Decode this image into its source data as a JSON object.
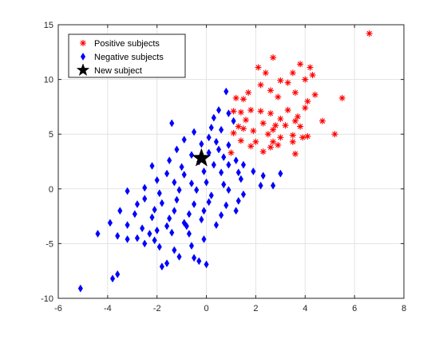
{
  "chart_data": {
    "type": "scatter",
    "title": "",
    "xlabel": "",
    "ylabel": "",
    "xlim": [
      -6,
      8
    ],
    "ylim": [
      -10,
      15
    ],
    "xticks": [
      -6,
      -4,
      -2,
      0,
      2,
      4,
      6,
      8
    ],
    "yticks": [
      -10,
      -5,
      0,
      5,
      10,
      15
    ],
    "grid": true,
    "legend_position": "top-left",
    "series": [
      {
        "name": "Positive subjects",
        "marker": "asterisk",
        "color": "#ff0000",
        "points": [
          [
            6.6,
            14.2
          ],
          [
            2.7,
            12.0
          ],
          [
            3.8,
            11.4
          ],
          [
            2.1,
            11.1
          ],
          [
            3.5,
            10.6
          ],
          [
            4.2,
            11.1
          ],
          [
            4.3,
            10.4
          ],
          [
            4.0,
            10.0
          ],
          [
            2.4,
            10.6
          ],
          [
            2.2,
            9.5
          ],
          [
            3.0,
            9.9
          ],
          [
            3.3,
            9.7
          ],
          [
            1.7,
            8.8
          ],
          [
            2.6,
            9.0
          ],
          [
            2.9,
            8.4
          ],
          [
            3.6,
            8.8
          ],
          [
            1.2,
            8.3
          ],
          [
            1.5,
            8.2
          ],
          [
            4.4,
            8.6
          ],
          [
            4.1,
            8.0
          ],
          [
            5.5,
            8.3
          ],
          [
            2.2,
            7.1
          ],
          [
            3.3,
            7.2
          ],
          [
            1.1,
            7.1
          ],
          [
            1.4,
            7.0
          ],
          [
            1.8,
            7.2
          ],
          [
            2.6,
            6.9
          ],
          [
            3.7,
            6.6
          ],
          [
            4.0,
            7.4
          ],
          [
            3.0,
            6.4
          ],
          [
            3.6,
            6.2
          ],
          [
            2.8,
            5.8
          ],
          [
            1.6,
            6.3
          ],
          [
            2.3,
            6.0
          ],
          [
            4.7,
            6.2
          ],
          [
            1.3,
            5.7
          ],
          [
            1.9,
            5.3
          ],
          [
            2.7,
            5.4
          ],
          [
            3.2,
            5.8
          ],
          [
            3.8,
            5.7
          ],
          [
            1.1,
            5.1
          ],
          [
            1.5,
            5.5
          ],
          [
            2.5,
            5.0
          ],
          [
            3.5,
            4.9
          ],
          [
            3.0,
            4.7
          ],
          [
            3.9,
            4.7
          ],
          [
            4.1,
            4.8
          ],
          [
            5.2,
            5.0
          ],
          [
            1.4,
            4.4
          ],
          [
            2.0,
            4.3
          ],
          [
            2.6,
            3.8
          ],
          [
            2.9,
            4.0
          ],
          [
            3.5,
            4.3
          ],
          [
            1.8,
            3.9
          ],
          [
            1.0,
            3.3
          ],
          [
            2.3,
            3.4
          ],
          [
            2.7,
            4.3
          ],
          [
            3.6,
            3.2
          ]
        ]
      },
      {
        "name": "Negative subjects",
        "marker": "diamond",
        "color": "#0000ff",
        "points": [
          [
            0.8,
            8.9
          ],
          [
            0.5,
            7.2
          ],
          [
            0.3,
            6.5
          ],
          [
            0.9,
            6.9
          ],
          [
            1.1,
            6.2
          ],
          [
            0.2,
            5.6
          ],
          [
            0.6,
            5.4
          ],
          [
            -1.4,
            6.0
          ],
          [
            -0.5,
            5.2
          ],
          [
            0.1,
            4.7
          ],
          [
            0.4,
            4.3
          ],
          [
            0.9,
            4.0
          ],
          [
            -0.9,
            4.5
          ],
          [
            -0.2,
            4.1
          ],
          [
            0.5,
            3.6
          ],
          [
            -1.2,
            3.6
          ],
          [
            -0.6,
            3.1
          ],
          [
            0.1,
            3.3
          ],
          [
            0.7,
            2.9
          ],
          [
            1.2,
            2.6
          ],
          [
            -1.5,
            2.6
          ],
          [
            -1.0,
            2.0
          ],
          [
            -0.3,
            2.5
          ],
          [
            0.3,
            2.2
          ],
          [
            0.9,
            2.2
          ],
          [
            1.5,
            2.2
          ],
          [
            -2.2,
            2.1
          ],
          [
            -1.6,
            1.4
          ],
          [
            -0.9,
            1.3
          ],
          [
            -0.1,
            1.6
          ],
          [
            0.6,
            1.5
          ],
          [
            1.3,
            1.5
          ],
          [
            1.9,
            1.6
          ],
          [
            2.3,
            1.2
          ],
          [
            3.0,
            1.4
          ],
          [
            -2.0,
            0.8
          ],
          [
            -1.3,
            0.6
          ],
          [
            -0.6,
            0.5
          ],
          [
            0.0,
            0.6
          ],
          [
            0.7,
            0.4
          ],
          [
            1.4,
            0.9
          ],
          [
            2.2,
            0.3
          ],
          [
            -3.2,
            -0.2
          ],
          [
            -2.5,
            0.1
          ],
          [
            -1.9,
            -0.4
          ],
          [
            -1.1,
            -0.1
          ],
          [
            -0.4,
            -0.1
          ],
          [
            0.2,
            -0.6
          ],
          [
            0.9,
            -0.1
          ],
          [
            1.5,
            -0.5
          ],
          [
            2.7,
            0.3
          ],
          [
            -2.5,
            -0.9
          ],
          [
            -1.8,
            -1.3
          ],
          [
            -1.2,
            -1.0
          ],
          [
            -0.5,
            -1.4
          ],
          [
            0.1,
            -1.2
          ],
          [
            0.8,
            -1.5
          ],
          [
            1.3,
            -1.1
          ],
          [
            -2.8,
            -1.4
          ],
          [
            -2.1,
            -1.9
          ],
          [
            -1.3,
            -2.0
          ],
          [
            -0.7,
            -2.3
          ],
          [
            -0.1,
            -2.0
          ],
          [
            0.6,
            -2.4
          ],
          [
            1.2,
            -2.0
          ],
          [
            -3.5,
            -2.0
          ],
          [
            -2.9,
            -2.3
          ],
          [
            -2.2,
            -2.6
          ],
          [
            -1.5,
            -2.7
          ],
          [
            -0.9,
            -3.1
          ],
          [
            -0.2,
            -2.8
          ],
          [
            0.4,
            -3.3
          ],
          [
            -3.9,
            -3.1
          ],
          [
            -3.2,
            -3.3
          ],
          [
            -2.6,
            -3.6
          ],
          [
            -2.0,
            -3.8
          ],
          [
            -1.4,
            -4.0
          ],
          [
            -0.7,
            -4.1
          ],
          [
            -0.1,
            -4.6
          ],
          [
            -4.4,
            -4.1
          ],
          [
            -3.6,
            -4.3
          ],
          [
            -2.8,
            -4.5
          ],
          [
            -2.1,
            -4.7
          ],
          [
            -1.6,
            -3.4
          ],
          [
            -3.2,
            -4.6
          ],
          [
            -2.5,
            -5.0
          ],
          [
            -1.9,
            -5.3
          ],
          [
            -1.3,
            -5.6
          ],
          [
            -0.6,
            -5.2
          ],
          [
            -1.6,
            -6.8
          ],
          [
            -1.1,
            -6.2
          ],
          [
            -0.5,
            -6.3
          ],
          [
            -1.8,
            -7.1
          ],
          [
            -3.6,
            -7.8
          ],
          [
            -3.8,
            -8.2
          ],
          [
            -5.1,
            -9.1
          ],
          [
            0.0,
            -6.9
          ],
          [
            -0.3,
            -6.6
          ],
          [
            -2.3,
            -4.1
          ],
          [
            -0.8,
            -3.4
          ]
        ]
      },
      {
        "name": "New subject",
        "marker": "pentagram",
        "color": "#000000",
        "points": [
          [
            -0.2,
            2.8
          ]
        ]
      }
    ]
  }
}
